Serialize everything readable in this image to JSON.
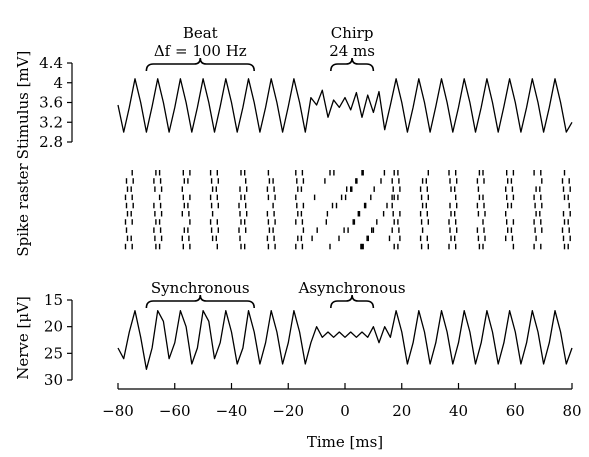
{
  "chart_data": [
    {
      "type": "line",
      "panel": "stimulus",
      "ylabel": "Stimulus [mV]",
      "ylim": [
        2.8,
        4.4
      ],
      "yticks": [
        2.8,
        3.2,
        3.6,
        4,
        4.4
      ],
      "xlim": [
        -80,
        80
      ],
      "series": [
        {
          "x": [
            -80,
            -78,
            -76,
            -74,
            -72,
            -70,
            -68,
            -66,
            -64,
            -62,
            -60,
            -58,
            -56,
            -54,
            -52,
            -50,
            -48,
            -46,
            -44,
            -42,
            -40,
            -38,
            -36,
            -34,
            -32,
            -30,
            -28,
            -26,
            -24,
            -22,
            -20,
            -18,
            -16,
            -14,
            -12,
            -10,
            -8,
            -6,
            -4,
            -2,
            0,
            2,
            4,
            6,
            8,
            10,
            12,
            14,
            16,
            18,
            20,
            22,
            24,
            26,
            28,
            30,
            32,
            34,
            36,
            38,
            40,
            42,
            44,
            46,
            48,
            50,
            52,
            54,
            56,
            58,
            60,
            62,
            64,
            66,
            68,
            70,
            72,
            74,
            76,
            78,
            80
          ],
          "y": [
            3.55,
            3.0,
            3.5,
            4.08,
            3.6,
            3.0,
            3.52,
            4.08,
            3.6,
            3.0,
            3.5,
            4.08,
            3.6,
            3.0,
            3.5,
            4.08,
            3.6,
            3.0,
            3.52,
            4.08,
            3.6,
            3.0,
            3.5,
            4.08,
            3.6,
            3.0,
            3.5,
            4.08,
            3.6,
            3.0,
            3.52,
            4.08,
            3.6,
            3.0,
            3.7,
            3.55,
            3.85,
            3.3,
            3.65,
            3.5,
            3.7,
            3.45,
            3.8,
            3.3,
            3.75,
            3.4,
            3.82,
            3.05,
            3.55,
            4.08,
            3.6,
            3.0,
            3.5,
            4.08,
            3.6,
            3.0,
            3.52,
            4.08,
            3.6,
            3.0,
            3.5,
            4.08,
            3.6,
            3.0,
            3.5,
            4.08,
            3.6,
            3.0,
            3.52,
            4.08,
            3.6,
            3.0,
            3.5,
            4.08,
            3.6,
            3.0,
            3.5,
            4.08,
            3.6,
            3.0,
            3.2
          ]
        }
      ],
      "annotations": [
        {
          "lines": [
            "Beat",
            "Δf = 100 Hz"
          ],
          "x_range": [
            -70,
            -32
          ]
        },
        {
          "lines": [
            "Chirp",
            "24 ms"
          ],
          "x_range": [
            -5,
            10
          ]
        }
      ]
    },
    {
      "type": "scatter",
      "panel": "raster",
      "ylabel": "Spike raster",
      "trials": 10,
      "xlim": [
        -80,
        80
      ],
      "spike_times": [
        -77,
        -75,
        -67,
        -65,
        -57,
        -55,
        -47,
        -45,
        -37,
        -35,
        -27,
        -25,
        -17,
        -15,
        -8,
        -3,
        2,
        6,
        10,
        13,
        17,
        19,
        27,
        29,
        37,
        39,
        47,
        49,
        57,
        59,
        67,
        69,
        77,
        79
      ]
    },
    {
      "type": "line",
      "panel": "nerve",
      "ylabel": "Nerve [μV]",
      "ylim": [
        30,
        15
      ],
      "yticks": [
        15,
        20,
        25,
        30
      ],
      "xlabel": "Time [ms]",
      "xlim": [
        -80,
        80
      ],
      "xticks": [
        -80,
        -60,
        -40,
        -20,
        0,
        20,
        40,
        60,
        80
      ],
      "series": [
        {
          "x": [
            -80,
            -78,
            -76,
            -74,
            -72,
            -70,
            -68,
            -66,
            -64,
            -62,
            -60,
            -58,
            -56,
            -54,
            -52,
            -50,
            -48,
            -46,
            -44,
            -42,
            -40,
            -38,
            -36,
            -34,
            -32,
            -30,
            -28,
            -26,
            -24,
            -22,
            -20,
            -18,
            -16,
            -14,
            -12,
            -10,
            -8,
            -6,
            -4,
            -2,
            0,
            2,
            4,
            6,
            8,
            10,
            12,
            14,
            16,
            18,
            20,
            22,
            24,
            26,
            28,
            30,
            32,
            34,
            36,
            38,
            40,
            42,
            44,
            46,
            48,
            50,
            52,
            54,
            56,
            58,
            60,
            62,
            64,
            66,
            68,
            70,
            72,
            74,
            76,
            78,
            80
          ],
          "y": [
            24,
            26,
            21,
            17,
            22,
            28,
            24,
            17,
            19,
            26,
            23,
            17,
            20,
            27,
            24,
            17,
            19,
            26,
            23,
            17,
            21,
            27,
            24,
            17,
            21,
            27,
            23,
            17,
            21,
            27,
            23,
            17,
            21,
            27,
            23,
            20,
            22,
            21,
            22,
            21,
            22,
            21,
            22,
            21,
            22,
            20,
            23,
            20,
            22,
            17,
            21,
            27,
            23,
            17,
            21,
            27,
            23,
            17,
            21,
            27,
            23,
            17,
            21,
            27,
            23,
            17,
            21,
            27,
            23,
            17,
            21,
            27,
            23,
            17,
            21,
            27,
            23,
            17,
            21,
            27,
            24
          ]
        }
      ],
      "annotations": [
        {
          "lines": [
            "Synchronous"
          ],
          "x_range": [
            -70,
            -32
          ]
        },
        {
          "lines": [
            "Asynchronous"
          ],
          "x_range": [
            -5,
            10
          ]
        }
      ]
    }
  ]
}
